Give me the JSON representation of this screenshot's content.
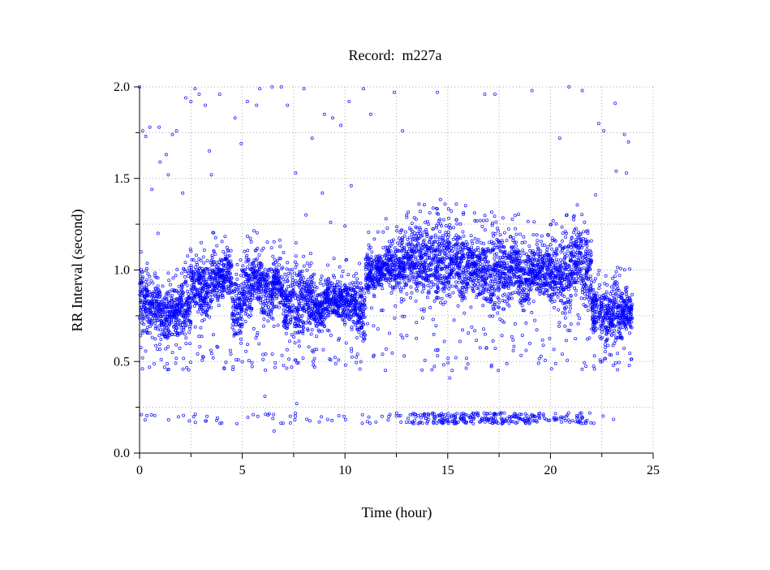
{
  "chart_data": {
    "type": "scatter",
    "title": "Record:  m227a",
    "xlabel": "Time (hour)",
    "ylabel": "RR Interval (second)",
    "xlim": [
      0,
      25
    ],
    "ylim": [
      0,
      2.0
    ],
    "xticks": [
      "0",
      "5",
      "10",
      "15",
      "20",
      "25"
    ],
    "xtick_values": [
      0,
      5,
      10,
      15,
      20,
      25
    ],
    "yticks": [
      "0.0",
      "0.5",
      "1.0",
      "1.5",
      "2.0"
    ],
    "ytick_values": [
      0,
      0.5,
      1.0,
      1.5,
      2.0
    ],
    "grid": true,
    "grid_step_x": 2.5,
    "grid_step_y": 0.25,
    "marker_color": "#0000ff",
    "marker": "open-circle",
    "density_bands": {
      "bin_hours": 0.5,
      "ranges": [
        [
          0.65,
          1.0
        ],
        [
          0.65,
          0.95
        ],
        [
          0.6,
          0.9
        ],
        [
          0.65,
          0.9
        ],
        [
          0.6,
          1.0
        ],
        [
          0.75,
          1.05
        ],
        [
          0.7,
          1.05
        ],
        [
          0.8,
          1.1
        ],
        [
          0.85,
          1.1
        ],
        [
          0.6,
          1.0
        ],
        [
          0.7,
          1.1
        ],
        [
          0.8,
          1.1
        ],
        [
          0.7,
          1.05
        ],
        [
          0.8,
          1.05
        ],
        [
          0.65,
          1.0
        ],
        [
          0.6,
          1.05
        ],
        [
          0.65,
          1.0
        ],
        [
          0.65,
          0.9
        ],
        [
          0.75,
          0.95
        ],
        [
          0.7,
          0.95
        ],
        [
          0.7,
          0.95
        ],
        [
          0.6,
          0.95
        ],
        [
          0.85,
          1.1
        ],
        [
          0.9,
          1.1
        ],
        [
          0.9,
          1.15
        ],
        [
          0.85,
          1.2
        ],
        [
          0.9,
          1.25
        ],
        [
          0.85,
          1.25
        ],
        [
          0.8,
          1.28
        ],
        [
          0.8,
          1.28
        ],
        [
          0.85,
          1.25
        ],
        [
          0.8,
          1.25
        ],
        [
          0.85,
          1.2
        ],
        [
          0.8,
          1.2
        ],
        [
          0.75,
          1.25
        ],
        [
          0.8,
          1.2
        ],
        [
          0.85,
          1.2
        ],
        [
          0.8,
          1.15
        ],
        [
          0.85,
          1.15
        ],
        [
          0.8,
          1.15
        ],
        [
          0.8,
          1.15
        ],
        [
          0.75,
          1.2
        ],
        [
          0.85,
          1.25
        ],
        [
          0.8,
          1.2
        ],
        [
          0.6,
          0.95
        ],
        [
          0.6,
          0.9
        ],
        [
          0.6,
          0.95
        ],
        [
          0.65,
          0.9
        ]
      ]
    },
    "low_band": {
      "value": 0.19,
      "spread": 0.03,
      "counts_per_bin": [
        3,
        2,
        1,
        1,
        2,
        3,
        3,
        3,
        1,
        1,
        1,
        2,
        4,
        3,
        2,
        3,
        2,
        2,
        2,
        2,
        1,
        2,
        3,
        2,
        3,
        6,
        12,
        14,
        16,
        20,
        22,
        20,
        18,
        18,
        20,
        18,
        18,
        20,
        16,
        6,
        8,
        10,
        12,
        10,
        1,
        1,
        1,
        0
      ]
    },
    "outliers": [
      [
        0,
        2.0
      ],
      [
        0.15,
        1.76
      ],
      [
        0.3,
        1.73
      ],
      [
        0.5,
        1.78
      ],
      [
        0.6,
        1.44
      ],
      [
        0.95,
        1.78
      ],
      [
        1.0,
        1.59
      ],
      [
        1.3,
        1.63
      ],
      [
        1.4,
        1.52
      ],
      [
        1.6,
        1.74
      ],
      [
        1.8,
        1.76
      ],
      [
        2.1,
        1.42
      ],
      [
        2.25,
        1.94
      ],
      [
        2.5,
        1.92
      ],
      [
        2.7,
        1.99
      ],
      [
        2.9,
        1.96
      ],
      [
        3.2,
        1.9
      ],
      [
        3.4,
        1.65
      ],
      [
        3.5,
        1.52
      ],
      [
        3.9,
        1.96
      ],
      [
        4.65,
        1.83
      ],
      [
        4.95,
        1.69
      ],
      [
        5.25,
        1.92
      ],
      [
        5.7,
        1.9
      ],
      [
        5.85,
        1.99
      ],
      [
        6.45,
        2.0
      ],
      [
        6.9,
        2.0
      ],
      [
        7.2,
        1.9
      ],
      [
        7.6,
        1.53
      ],
      [
        8.0,
        1.99
      ],
      [
        8.4,
        1.72
      ],
      [
        9.0,
        1.85
      ],
      [
        9.4,
        1.83
      ],
      [
        9.8,
        1.79
      ],
      [
        10.2,
        1.92
      ],
      [
        10.3,
        1.46
      ],
      [
        10.9,
        1.99
      ],
      [
        11.25,
        1.85
      ],
      [
        12.4,
        1.97
      ],
      [
        12.8,
        1.76
      ],
      [
        14.5,
        1.97
      ],
      [
        16.8,
        1.96
      ],
      [
        17.3,
        1.96
      ],
      [
        19.1,
        1.98
      ],
      [
        20.45,
        1.72
      ],
      [
        20.9,
        2.0
      ],
      [
        21.55,
        1.98
      ],
      [
        22.35,
        1.8
      ],
      [
        22.6,
        1.76
      ],
      [
        23.15,
        1.91
      ],
      [
        23.2,
        1.54
      ],
      [
        23.6,
        1.74
      ],
      [
        23.8,
        1.7
      ],
      [
        23.7,
        1.53
      ],
      [
        6.1,
        0.31
      ],
      [
        6.55,
        0.12
      ],
      [
        7.65,
        0.27
      ],
      [
        15.1,
        0.41
      ],
      [
        22.2,
        1.41
      ],
      [
        8.1,
        1.3
      ],
      [
        8.9,
        1.42
      ],
      [
        9.3,
        1.26
      ],
      [
        10.0,
        1.24
      ],
      [
        0.9,
        1.2
      ],
      [
        3.0,
        1.15
      ],
      [
        12.0,
        1.28
      ],
      [
        13.0,
        1.3
      ],
      [
        20.8,
        1.3
      ]
    ]
  }
}
